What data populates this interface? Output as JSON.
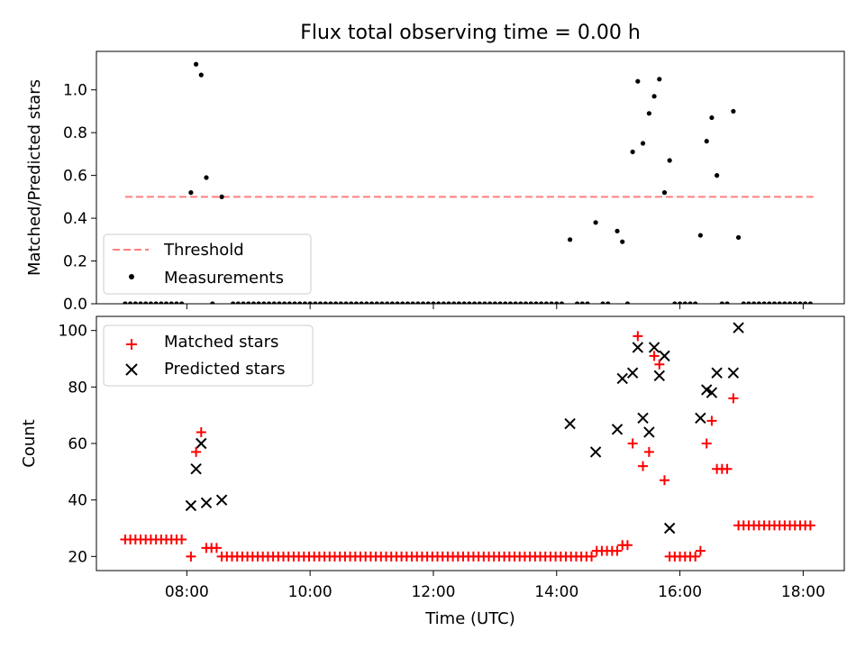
{
  "chart_data": [
    {
      "type": "scatter",
      "title": "Flux total observing time = 0.00 h",
      "xlabel": "",
      "ylabel": "Matched/Predicted stars",
      "xlim": [
        "06:32",
        "18:40"
      ],
      "ylim": [
        0,
        1.18
      ],
      "yticks": [
        "0.0",
        "0.2",
        "0.4",
        "0.6",
        "0.8",
        "1.0"
      ],
      "grid": false,
      "legend": {
        "position": "lower-left",
        "entries": [
          "Threshold",
          "Measurements"
        ]
      },
      "colors": {
        "threshold": "#ff7f7f",
        "measurements": "#000000"
      },
      "threshold": {
        "name": "Threshold",
        "value": 0.5,
        "x_start": "07:00",
        "x_end": "18:10"
      },
      "measurements_nonzero": [
        {
          "x": "08:04",
          "y": 0.52
        },
        {
          "x": "08:09",
          "y": 1.12
        },
        {
          "x": "08:14",
          "y": 1.07
        },
        {
          "x": "08:19",
          "y": 0.59
        },
        {
          "x": "08:34",
          "y": 0.5
        },
        {
          "x": "14:13",
          "y": 0.3
        },
        {
          "x": "14:38",
          "y": 0.38
        },
        {
          "x": "14:59",
          "y": 0.34
        },
        {
          "x": "15:04",
          "y": 0.29
        },
        {
          "x": "15:14",
          "y": 0.71
        },
        {
          "x": "15:19",
          "y": 1.04
        },
        {
          "x": "15:24",
          "y": 0.75
        },
        {
          "x": "15:30",
          "y": 0.89
        },
        {
          "x": "15:35",
          "y": 0.97
        },
        {
          "x": "15:40",
          "y": 1.05
        },
        {
          "x": "15:45",
          "y": 0.52
        },
        {
          "x": "15:50",
          "y": 0.67
        },
        {
          "x": "16:20",
          "y": 0.32
        },
        {
          "x": "16:26",
          "y": 0.76
        },
        {
          "x": "16:31",
          "y": 0.87
        },
        {
          "x": "16:36",
          "y": 0.6
        },
        {
          "x": "16:52",
          "y": 0.9
        },
        {
          "x": "16:57",
          "y": 0.31
        }
      ],
      "measurements_zero": {
        "y": 0,
        "x": [
          "07:00",
          "07:05",
          "07:10",
          "07:15",
          "07:20",
          "07:25",
          "07:30",
          "07:35",
          "07:40",
          "07:45",
          "07:50",
          "07:55",
          "08:25",
          "08:45",
          "08:50",
          "08:55",
          "09:00",
          "09:05",
          "09:10",
          "09:15",
          "09:20",
          "09:25",
          "09:30",
          "09:35",
          "09:40",
          "09:45",
          "09:50",
          "09:55",
          "10:00",
          "10:05",
          "10:10",
          "10:15",
          "10:20",
          "10:25",
          "10:30",
          "10:35",
          "10:40",
          "10:45",
          "10:50",
          "10:55",
          "11:00",
          "11:05",
          "11:10",
          "11:15",
          "11:20",
          "11:25",
          "11:30",
          "11:35",
          "11:40",
          "11:45",
          "11:50",
          "11:55",
          "12:00",
          "12:05",
          "12:10",
          "12:15",
          "12:20",
          "12:25",
          "12:30",
          "12:35",
          "12:40",
          "12:45",
          "12:50",
          "12:55",
          "13:00",
          "13:05",
          "13:10",
          "13:15",
          "13:20",
          "13:25",
          "13:30",
          "13:35",
          "13:40",
          "13:45",
          "13:50",
          "13:55",
          "14:00",
          "14:05",
          "14:20",
          "14:25",
          "14:30",
          "14:45",
          "14:50",
          "15:09",
          "15:55",
          "16:00",
          "16:05",
          "16:10",
          "16:15",
          "16:41",
          "16:46",
          "17:02",
          "17:07",
          "17:12",
          "17:17",
          "17:22",
          "17:27",
          "17:32",
          "17:37",
          "17:42",
          "17:47",
          "17:52",
          "17:57",
          "18:02",
          "18:07"
        ]
      }
    },
    {
      "type": "scatter",
      "title": "",
      "xlabel": "Time (UTC)",
      "ylabel": "Count",
      "xlim": [
        "06:32",
        "18:40"
      ],
      "ylim": [
        15,
        105
      ],
      "yticks": [
        "20",
        "40",
        "60",
        "80",
        "100"
      ],
      "xticks": [
        "08:00",
        "10:00",
        "12:00",
        "14:00",
        "16:00",
        "18:00"
      ],
      "grid": false,
      "legend": {
        "position": "top-left",
        "entries": [
          "Matched stars",
          "Predicted stars"
        ]
      },
      "colors": {
        "matched": "#ff0000",
        "predicted": "#000000"
      },
      "series": [
        {
          "name": "Matched stars",
          "marker": "+",
          "points": [
            {
              "x": "07:00",
              "y": 26
            },
            {
              "x": "07:05",
              "y": 26
            },
            {
              "x": "07:10",
              "y": 26
            },
            {
              "x": "07:15",
              "y": 26
            },
            {
              "x": "07:20",
              "y": 26
            },
            {
              "x": "07:25",
              "y": 26
            },
            {
              "x": "07:30",
              "y": 26
            },
            {
              "x": "07:35",
              "y": 26
            },
            {
              "x": "07:40",
              "y": 26
            },
            {
              "x": "07:45",
              "y": 26
            },
            {
              "x": "07:50",
              "y": 26
            },
            {
              "x": "07:55",
              "y": 26
            },
            {
              "x": "08:04",
              "y": 20
            },
            {
              "x": "08:09",
              "y": 57
            },
            {
              "x": "08:14",
              "y": 64
            },
            {
              "x": "08:19",
              "y": 23
            },
            {
              "x": "08:24",
              "y": 23
            },
            {
              "x": "08:29",
              "y": 23
            },
            {
              "x": "08:34",
              "y": 20
            },
            {
              "x": "08:39",
              "y": 20
            },
            {
              "x": "08:44",
              "y": 20
            },
            {
              "x": "08:49",
              "y": 20
            },
            {
              "x": "08:54",
              "y": 20
            },
            {
              "x": "08:59",
              "y": 20
            },
            {
              "x": "09:04",
              "y": 20
            },
            {
              "x": "09:09",
              "y": 20
            },
            {
              "x": "09:14",
              "y": 20
            },
            {
              "x": "09:19",
              "y": 20
            },
            {
              "x": "09:24",
              "y": 20
            },
            {
              "x": "09:29",
              "y": 20
            },
            {
              "x": "09:34",
              "y": 20
            },
            {
              "x": "09:39",
              "y": 20
            },
            {
              "x": "09:44",
              "y": 20
            },
            {
              "x": "09:49",
              "y": 20
            },
            {
              "x": "09:54",
              "y": 20
            },
            {
              "x": "09:59",
              "y": 20
            },
            {
              "x": "10:04",
              "y": 20
            },
            {
              "x": "10:09",
              "y": 20
            },
            {
              "x": "10:14",
              "y": 20
            },
            {
              "x": "10:19",
              "y": 20
            },
            {
              "x": "10:24",
              "y": 20
            },
            {
              "x": "10:29",
              "y": 20
            },
            {
              "x": "10:34",
              "y": 20
            },
            {
              "x": "10:39",
              "y": 20
            },
            {
              "x": "10:44",
              "y": 20
            },
            {
              "x": "10:49",
              "y": 20
            },
            {
              "x": "10:54",
              "y": 20
            },
            {
              "x": "10:59",
              "y": 20
            },
            {
              "x": "11:04",
              "y": 20
            },
            {
              "x": "11:09",
              "y": 20
            },
            {
              "x": "11:14",
              "y": 20
            },
            {
              "x": "11:19",
              "y": 20
            },
            {
              "x": "11:24",
              "y": 20
            },
            {
              "x": "11:29",
              "y": 20
            },
            {
              "x": "11:34",
              "y": 20
            },
            {
              "x": "11:39",
              "y": 20
            },
            {
              "x": "11:44",
              "y": 20
            },
            {
              "x": "11:49",
              "y": 20
            },
            {
              "x": "11:54",
              "y": 20
            },
            {
              "x": "11:59",
              "y": 20
            },
            {
              "x": "12:04",
              "y": 20
            },
            {
              "x": "12:09",
              "y": 20
            },
            {
              "x": "12:14",
              "y": 20
            },
            {
              "x": "12:19",
              "y": 20
            },
            {
              "x": "12:24",
              "y": 20
            },
            {
              "x": "12:29",
              "y": 20
            },
            {
              "x": "12:34",
              "y": 20
            },
            {
              "x": "12:39",
              "y": 20
            },
            {
              "x": "12:44",
              "y": 20
            },
            {
              "x": "12:49",
              "y": 20
            },
            {
              "x": "12:54",
              "y": 20
            },
            {
              "x": "12:59",
              "y": 20
            },
            {
              "x": "13:04",
              "y": 20
            },
            {
              "x": "13:09",
              "y": 20
            },
            {
              "x": "13:14",
              "y": 20
            },
            {
              "x": "13:19",
              "y": 20
            },
            {
              "x": "13:24",
              "y": 20
            },
            {
              "x": "13:29",
              "y": 20
            },
            {
              "x": "13:34",
              "y": 20
            },
            {
              "x": "13:39",
              "y": 20
            },
            {
              "x": "13:44",
              "y": 20
            },
            {
              "x": "13:49",
              "y": 20
            },
            {
              "x": "13:54",
              "y": 20
            },
            {
              "x": "13:59",
              "y": 20
            },
            {
              "x": "14:04",
              "y": 20
            },
            {
              "x": "14:09",
              "y": 20
            },
            {
              "x": "14:14",
              "y": 20
            },
            {
              "x": "14:19",
              "y": 20
            },
            {
              "x": "14:24",
              "y": 20
            },
            {
              "x": "14:29",
              "y": 20
            },
            {
              "x": "14:34",
              "y": 20
            },
            {
              "x": "14:39",
              "y": 22
            },
            {
              "x": "14:44",
              "y": 22
            },
            {
              "x": "14:49",
              "y": 22
            },
            {
              "x": "14:54",
              "y": 22
            },
            {
              "x": "14:59",
              "y": 22
            },
            {
              "x": "15:04",
              "y": 24
            },
            {
              "x": "15:09",
              "y": 24
            },
            {
              "x": "15:14",
              "y": 60
            },
            {
              "x": "15:19",
              "y": 98
            },
            {
              "x": "15:24",
              "y": 52
            },
            {
              "x": "15:30",
              "y": 57
            },
            {
              "x": "15:35",
              "y": 91
            },
            {
              "x": "15:40",
              "y": 88
            },
            {
              "x": "15:45",
              "y": 47
            },
            {
              "x": "15:50",
              "y": 20
            },
            {
              "x": "15:55",
              "y": 20
            },
            {
              "x": "16:00",
              "y": 20
            },
            {
              "x": "16:05",
              "y": 20
            },
            {
              "x": "16:10",
              "y": 20
            },
            {
              "x": "16:15",
              "y": 20
            },
            {
              "x": "16:20",
              "y": 22
            },
            {
              "x": "16:26",
              "y": 60
            },
            {
              "x": "16:31",
              "y": 68
            },
            {
              "x": "16:36",
              "y": 51
            },
            {
              "x": "16:41",
              "y": 51
            },
            {
              "x": "16:46",
              "y": 51
            },
            {
              "x": "16:52",
              "y": 76
            },
            {
              "x": "16:57",
              "y": 31
            },
            {
              "x": "17:02",
              "y": 31
            },
            {
              "x": "17:07",
              "y": 31
            },
            {
              "x": "17:12",
              "y": 31
            },
            {
              "x": "17:17",
              "y": 31
            },
            {
              "x": "17:22",
              "y": 31
            },
            {
              "x": "17:27",
              "y": 31
            },
            {
              "x": "17:32",
              "y": 31
            },
            {
              "x": "17:37",
              "y": 31
            },
            {
              "x": "17:42",
              "y": 31
            },
            {
              "x": "17:47",
              "y": 31
            },
            {
              "x": "17:52",
              "y": 31
            },
            {
              "x": "17:57",
              "y": 31
            },
            {
              "x": "18:02",
              "y": 31
            },
            {
              "x": "18:07",
              "y": 31
            }
          ]
        },
        {
          "name": "Predicted stars",
          "marker": "x",
          "points": [
            {
              "x": "08:04",
              "y": 38
            },
            {
              "x": "08:09",
              "y": 51
            },
            {
              "x": "08:14",
              "y": 60
            },
            {
              "x": "08:19",
              "y": 39
            },
            {
              "x": "08:34",
              "y": 40
            },
            {
              "x": "14:13",
              "y": 67
            },
            {
              "x": "14:38",
              "y": 57
            },
            {
              "x": "14:59",
              "y": 65
            },
            {
              "x": "15:04",
              "y": 83
            },
            {
              "x": "15:14",
              "y": 85
            },
            {
              "x": "15:19",
              "y": 94
            },
            {
              "x": "15:24",
              "y": 69
            },
            {
              "x": "15:30",
              "y": 64
            },
            {
              "x": "15:35",
              "y": 94
            },
            {
              "x": "15:40",
              "y": 84
            },
            {
              "x": "15:45",
              "y": 91
            },
            {
              "x": "15:50",
              "y": 30
            },
            {
              "x": "16:20",
              "y": 69
            },
            {
              "x": "16:26",
              "y": 79
            },
            {
              "x": "16:31",
              "y": 78
            },
            {
              "x": "16:36",
              "y": 85
            },
            {
              "x": "16:52",
              "y": 85
            },
            {
              "x": "16:57",
              "y": 101
            }
          ]
        }
      ]
    }
  ]
}
